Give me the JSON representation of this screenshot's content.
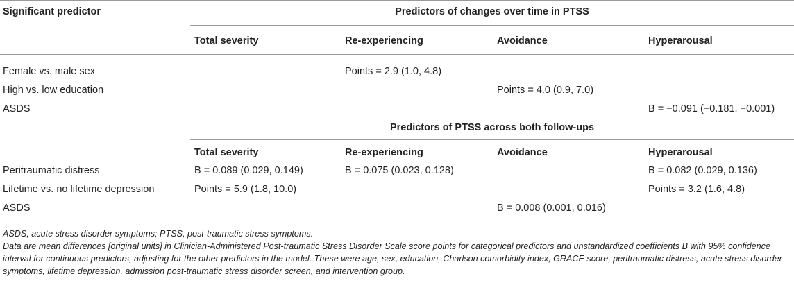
{
  "table": {
    "header": {
      "significant_predictor": "Significant predictor",
      "section1_title": "Predictors of changes over time in PTSS",
      "section2_title": "Predictors of PTSS across both follow-ups",
      "columns": [
        "Total severity",
        "Re-experiencing",
        "Avoidance",
        "Hyperarousal"
      ]
    },
    "section1_rows": [
      {
        "predictor": "Female vs. male sex",
        "total": "",
        "reexp": "Points = 2.9 (1.0, 4.8)",
        "avoid": "",
        "hyper": ""
      },
      {
        "predictor": "High vs. low education",
        "total": "",
        "reexp": "",
        "avoid": "Points = 4.0 (0.9, 7.0)",
        "hyper": ""
      },
      {
        "predictor": "ASDS",
        "total": "",
        "reexp": "",
        "avoid": "",
        "hyper": "B = −0.091 (−0.181, −0.001)"
      }
    ],
    "section2_rows": [
      {
        "predictor": "Peritraumatic distress",
        "total": "B = 0.089 (0.029, 0.149)",
        "reexp": "B = 0.075 (0.023, 0.128)",
        "avoid": "",
        "hyper": "B = 0.082 (0.029, 0.136)"
      },
      {
        "predictor": "Lifetime vs. no lifetime depression",
        "total": "Points = 5.9 (1.8, 10.0)",
        "reexp": "",
        "avoid": "",
        "hyper": "Points = 3.2 (1.6, 4.8)"
      },
      {
        "predictor": "ASDS",
        "total": "",
        "reexp": "",
        "avoid": "B = 0.008 (0.001, 0.016)",
        "hyper": ""
      }
    ]
  },
  "footnotes": {
    "line1": "ASDS, acute stress disorder symptoms; PTSS, post-traumatic stress symptoms.",
    "line2": "Data are mean differences [original units] in Clinician-Administered Post-traumatic Stress Disorder Scale score points for categorical predictors and unstandardized coefficients B with 95% confidence interval for continuous predictors, adjusting for the other predictors in the model. These were age, sex, education, Charlson comorbidity index, GRACE score, peritraumatic distress, acute stress disorder symptoms, lifetime depression, admission post-traumatic stress disorder screen, and intervention group."
  }
}
